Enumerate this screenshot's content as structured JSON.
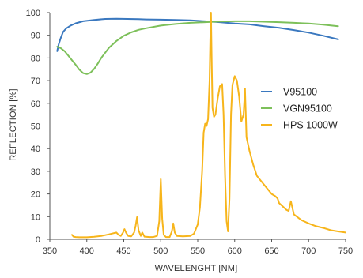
{
  "colors": {
    "background": "#ffffff",
    "axis": "#555555",
    "text": "#333333"
  },
  "chart_data": {
    "type": "line",
    "title": "",
    "xlabel": "WAVELENGHT [NM]",
    "ylabel": "REFLECTION [%]",
    "xlim": [
      350,
      750
    ],
    "ylim": [
      0,
      100
    ],
    "xticks": [
      350,
      400,
      450,
      500,
      550,
      600,
      650,
      700,
      750
    ],
    "yticks": [
      0,
      10,
      20,
      30,
      40,
      50,
      60,
      70,
      80,
      90,
      100
    ],
    "grid": false,
    "legend_position": "right",
    "series": [
      {
        "name": "V95100",
        "color": "#3a78bf",
        "x": [
          360,
          362,
          365,
          368,
          372,
          378,
          385,
          395,
          410,
          425,
          440,
          455,
          470,
          480,
          500,
          520,
          540,
          560,
          580,
          600,
          620,
          640,
          660,
          680,
          700,
          720,
          740
        ],
        "y": [
          83,
          86,
          89,
          91.5,
          93,
          94.3,
          95.3,
          96.2,
          96.8,
          97.2,
          97.3,
          97.2,
          97.1,
          97.0,
          96.9,
          96.8,
          96.6,
          96.2,
          95.8,
          95.2,
          94.8,
          94.0,
          93.3,
          92.3,
          91.2,
          89.8,
          88.2
        ]
      },
      {
        "name": "VGN95100",
        "color": "#7dc05a",
        "x": [
          360,
          365,
          370,
          375,
          380,
          385,
          390,
          395,
          400,
          405,
          410,
          415,
          420,
          430,
          440,
          450,
          460,
          470,
          480,
          500,
          520,
          540,
          560,
          580,
          600,
          620,
          640,
          660,
          680,
          700,
          720,
          740
        ],
        "y": [
          85,
          84.3,
          83,
          81,
          79,
          77,
          74.8,
          73.3,
          72.9,
          73.5,
          75.2,
          77.6,
          80.2,
          84.5,
          87.5,
          89.8,
          91.3,
          92.4,
          93.1,
          94.3,
          95.0,
          95.5,
          95.8,
          96.1,
          96.2,
          96.2,
          96.0,
          95.8,
          95.5,
          95.2,
          94.7,
          94.0
        ]
      },
      {
        "name": "HPS 1000W",
        "color": "#f7b51b",
        "x": [
          380,
          382,
          385,
          390,
          400,
          410,
          420,
          430,
          440,
          443,
          446,
          449,
          451,
          453,
          456,
          460,
          464,
          466,
          468,
          470,
          473,
          475,
          478,
          485,
          490,
          495,
          498,
          500,
          502,
          504,
          507,
          512,
          515,
          517,
          519,
          522,
          530,
          540,
          545,
          550,
          553,
          556,
          558,
          560,
          562,
          564,
          566,
          567,
          568,
          569,
          570,
          572,
          574,
          577,
          580,
          583,
          585,
          587,
          589,
          591,
          593,
          595,
          597,
          600,
          603,
          606,
          609,
          612,
          614,
          616,
          618,
          620,
          625,
          630,
          640,
          650,
          655,
          658,
          660,
          665,
          670,
          673,
          676,
          680,
          690,
          700,
          710,
          720,
          730,
          740,
          750
        ],
        "y": [
          2,
          1.2,
          1,
          0.9,
          0.9,
          1.1,
          1.5,
          2.2,
          3,
          2,
          1.5,
          3,
          4.5,
          3,
          1.5,
          1.3,
          3,
          6,
          9.8,
          4,
          1.5,
          3,
          1.2,
          1,
          1,
          1.5,
          8,
          26.5,
          9,
          2,
          1,
          1,
          3.5,
          7,
          3,
          1.5,
          1.3,
          1.5,
          2.5,
          6.5,
          14,
          30,
          47,
          51,
          50,
          53,
          70,
          88,
          100,
          76,
          58,
          54,
          55,
          62,
          67.5,
          68.5,
          55,
          28,
          8,
          3.5,
          18,
          55,
          68,
          72,
          70,
          63,
          52,
          55,
          66.5,
          45,
          42,
          39,
          33,
          28,
          24,
          20,
          19,
          18,
          16,
          14.5,
          13,
          12.5,
          16.8,
          11,
          8.5,
          7,
          5.8,
          5,
          4,
          3.5,
          3
        ]
      }
    ]
  }
}
